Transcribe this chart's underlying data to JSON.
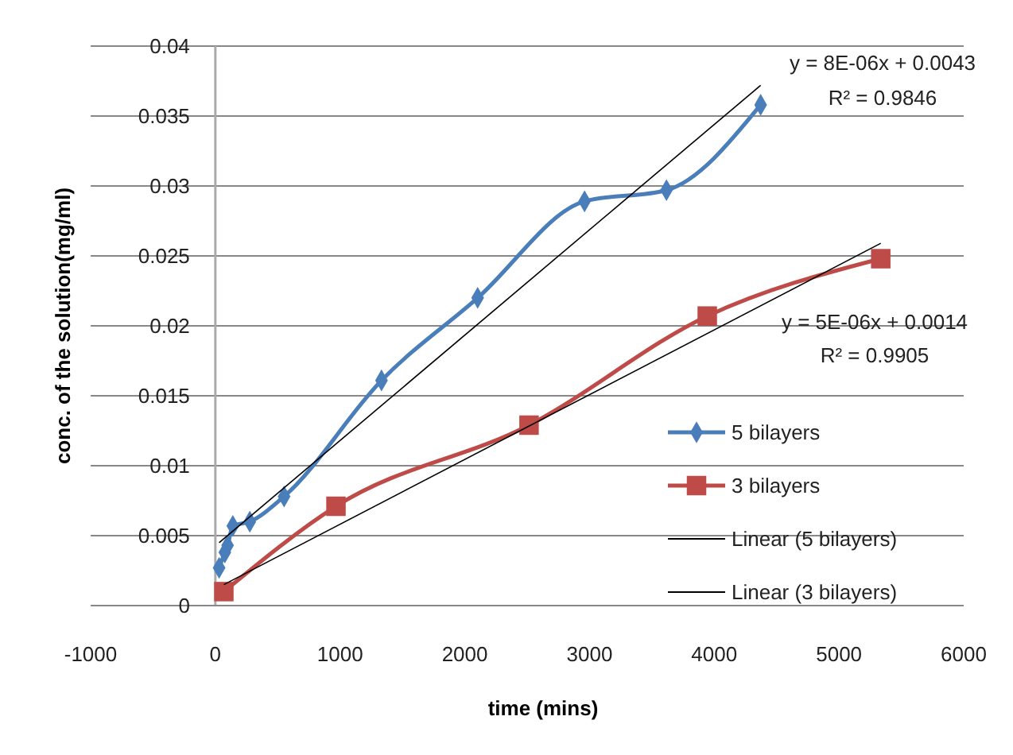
{
  "chart_data": {
    "type": "line",
    "xlabel": "time (mins)",
    "ylabel": "conc. of the solution(mg/ml)",
    "xlim": [
      -1000,
      6000
    ],
    "xticks": [
      -1000,
      0,
      1000,
      2000,
      3000,
      4000,
      5000,
      6000
    ],
    "ylim": [
      0,
      0.04
    ],
    "yticks": [
      0,
      0.005,
      0.01,
      0.015,
      0.02,
      0.025,
      0.03,
      0.035,
      0.04
    ],
    "grid": "y",
    "legend": "right",
    "line_style": "solid",
    "series": [
      {
        "name": "5 bilayers",
        "color": "#4a7ebb",
        "marker": "diamond",
        "x": [
          30,
          76,
          98,
          140,
          276,
          551,
          1332,
          2103,
          2960,
          3617,
          4372
        ],
        "values": [
          0.0027,
          0.0038,
          0.0043,
          0.0057,
          0.006,
          0.0078,
          0.0161,
          0.022,
          0.0289,
          0.0297,
          0.0358
        ]
      },
      {
        "name": "3 bilayers",
        "color": "#be4b48",
        "marker": "square",
        "x": [
          68,
          967,
          2515,
          3944,
          5335
        ],
        "values": [
          0.001,
          0.0071,
          0.0129,
          0.0207,
          0.0248
        ]
      },
      {
        "name": "Linear (5 bilayers)",
        "color": "#000000",
        "marker": "none",
        "x": [
          30,
          4372
        ],
        "values": [
          0.0045,
          0.0372
        ]
      },
      {
        "name": "Linear (3 bilayers)",
        "color": "#000000",
        "marker": "none",
        "x": [
          68,
          5335
        ],
        "values": [
          0.0015,
          0.0259
        ]
      }
    ],
    "annotations": [
      "y = 8E-06x + 0.0043",
      "R² = 0.9846",
      "y = 5E-06x + 0.0014",
      "R² = 0.9905"
    ]
  }
}
